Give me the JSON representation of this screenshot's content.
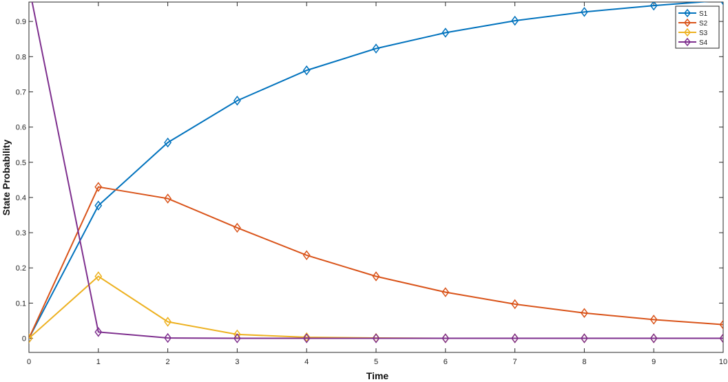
{
  "chart_data": {
    "type": "line",
    "title": "",
    "xlabel": "Time",
    "ylabel": "State Probability",
    "xlim": [
      0,
      10
    ],
    "ylim": [
      -0.04,
      0.955
    ],
    "xticks": [
      0,
      1,
      2,
      3,
      4,
      5,
      6,
      7,
      8,
      9,
      10
    ],
    "yticks": [
      0,
      0.1,
      0.2,
      0.3,
      0.4,
      0.5,
      0.6,
      0.7,
      0.8,
      0.9
    ],
    "grid": false,
    "legend_position": "top-right",
    "x": [
      0,
      1,
      2,
      3,
      4,
      5,
      6,
      7,
      8,
      9,
      10
    ],
    "series": [
      {
        "name": "S1",
        "color": "#0072BD",
        "values": [
          0,
          0.377,
          0.556,
          0.675,
          0.761,
          0.823,
          0.868,
          0.902,
          0.927,
          0.945,
          0.96
        ]
      },
      {
        "name": "S2",
        "color": "#D95319",
        "values": [
          0,
          0.43,
          0.397,
          0.314,
          0.236,
          0.176,
          0.131,
          0.097,
          0.072,
          0.053,
          0.039
        ]
      },
      {
        "name": "S3",
        "color": "#EDB120",
        "values": [
          0,
          0.176,
          0.047,
          0.011,
          0.003,
          0.001,
          0,
          0,
          0,
          0,
          0
        ]
      },
      {
        "name": "S4",
        "color": "#7E2F8E",
        "values": [
          1,
          0.018,
          0.001,
          0,
          0,
          0,
          0,
          0,
          0,
          0,
          0
        ]
      }
    ],
    "marker": "diamond"
  }
}
